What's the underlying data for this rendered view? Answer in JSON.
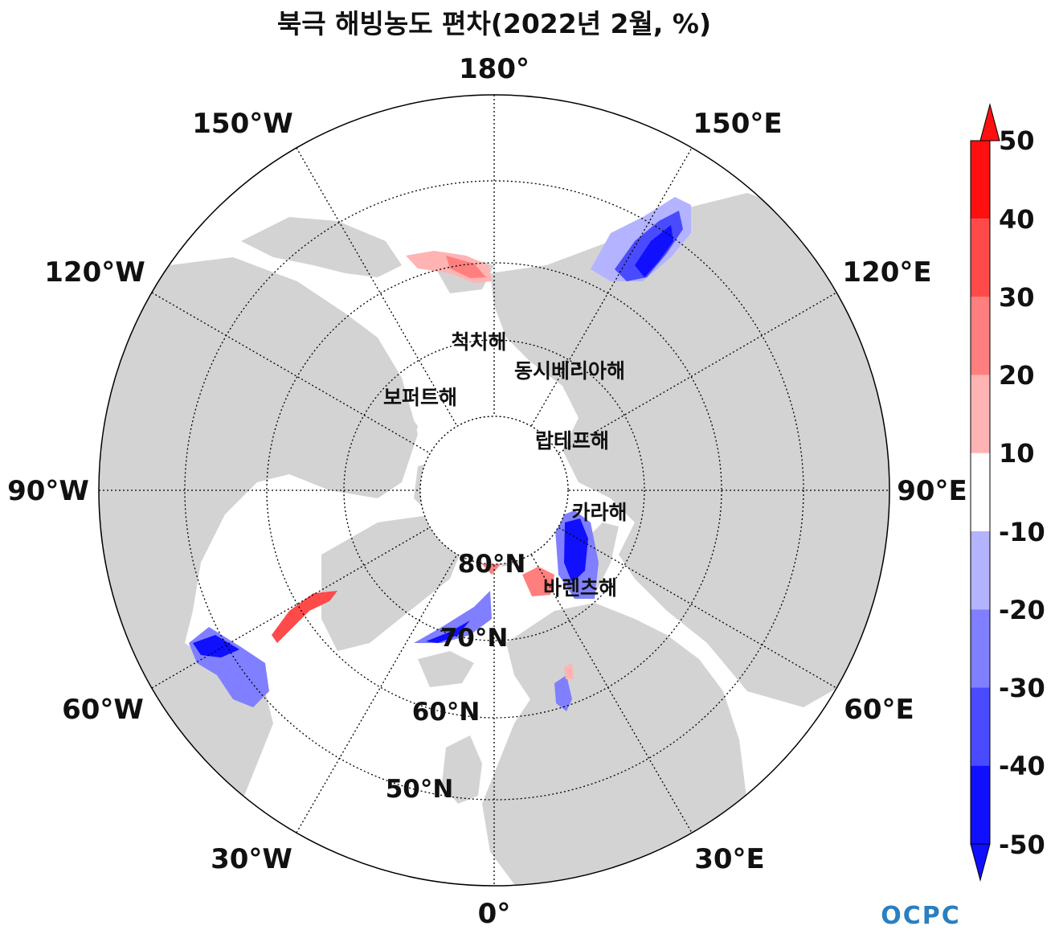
{
  "title": "북극 해빙농도 편차(2022년 2월, %)",
  "longitude_labels": [
    "180°",
    "150°E",
    "120°E",
    "90°E",
    "60°E",
    "30°E",
    "0°",
    "30°W",
    "60°W",
    "90°W",
    "120°W",
    "150°W"
  ],
  "latitude_labels": [
    "80°N",
    "70°N",
    "60°N",
    "50°N"
  ],
  "sea_labels": [
    "척치해",
    "동시베리아해",
    "보퍼트해",
    "랍테프해",
    "카라해",
    "바렌츠해"
  ],
  "colorbar": {
    "ticks": [
      "50",
      "40",
      "30",
      "20",
      "10",
      "-10",
      "-20",
      "-30",
      "-40",
      "-50"
    ],
    "colors": [
      "#ff1010",
      "#ff4a4a",
      "#ff7f7f",
      "#ffb3b3",
      "#ffffff",
      "#b3b3ff",
      "#7f7fff",
      "#4a4aff",
      "#1010ff"
    ],
    "extend": "both"
  },
  "colors": {
    "land": "#d3d3d3",
    "ocean": "#ffffff",
    "positive_anomaly": "#ff3030",
    "negative_anomaly": "#1010ff"
  },
  "logo": "OCPC"
}
